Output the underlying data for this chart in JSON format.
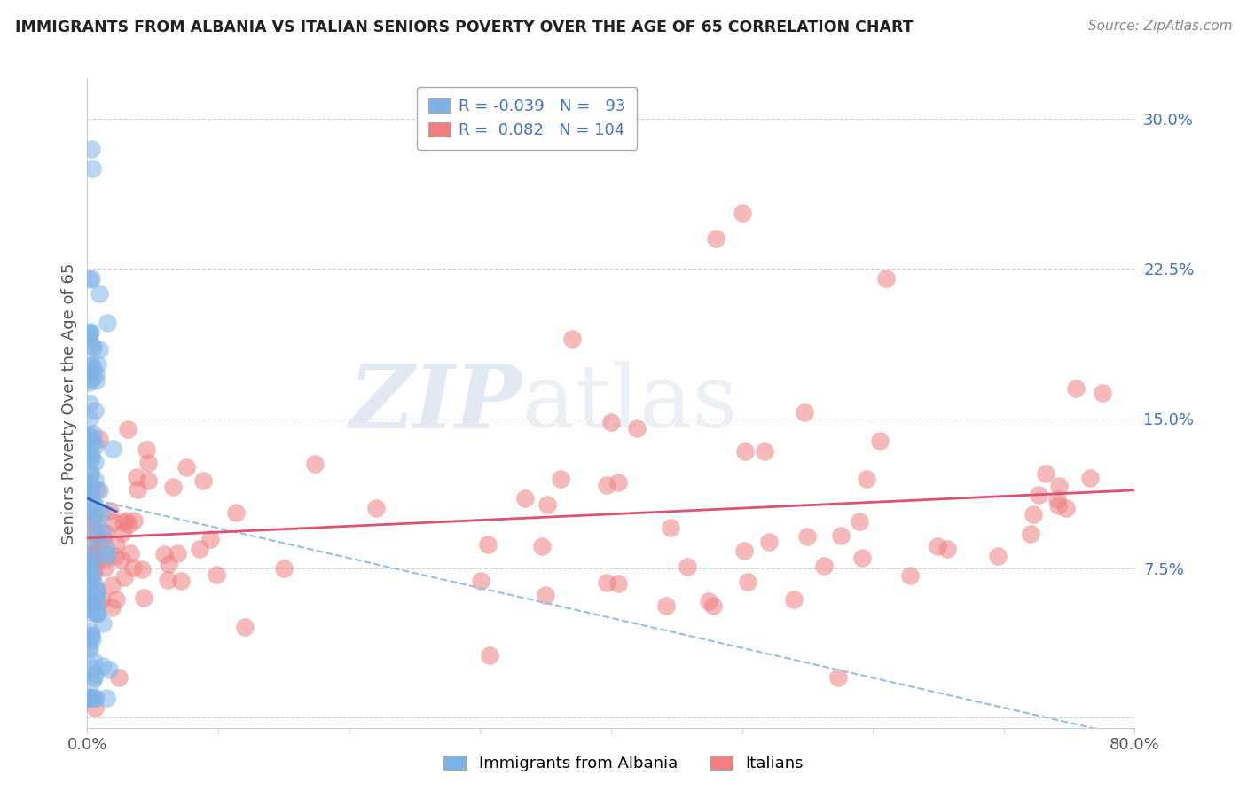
{
  "title": "IMMIGRANTS FROM ALBANIA VS ITALIAN SENIORS POVERTY OVER THE AGE OF 65 CORRELATION CHART",
  "source": "Source: ZipAtlas.com",
  "ylabel": "Seniors Poverty Over the Age of 65",
  "xlabel_blue": "Immigrants from Albania",
  "xlabel_pink": "Italians",
  "legend_blue_r": "-0.039",
  "legend_blue_n": "93",
  "legend_pink_r": "0.082",
  "legend_pink_n": "104",
  "xlim": [
    0.0,
    0.8
  ],
  "ylim": [
    -0.005,
    0.32
  ],
  "ytick_positions": [
    0.0,
    0.075,
    0.15,
    0.225,
    0.3
  ],
  "ytick_labels": [
    "",
    "7.5%",
    "15.0%",
    "22.5%",
    "30.0%"
  ],
  "xtick_positions": [
    0.0,
    0.8
  ],
  "xtick_labels": [
    "0.0%",
    "80.0%"
  ],
  "color_blue": "#7fb3e8",
  "color_pink": "#f08080",
  "trend_blue_solid_color": "#3060c0",
  "trend_blue_dash_color": "#90c0e8",
  "trend_pink_color": "#e05070",
  "watermark_zip": "ZIP",
  "watermark_atlas": "atlas",
  "background_color": "#ffffff",
  "grid_color": "#cccccc",
  "title_color": "#222222",
  "source_color": "#888888",
  "label_color": "#4472c4",
  "ylabel_color": "#555555"
}
